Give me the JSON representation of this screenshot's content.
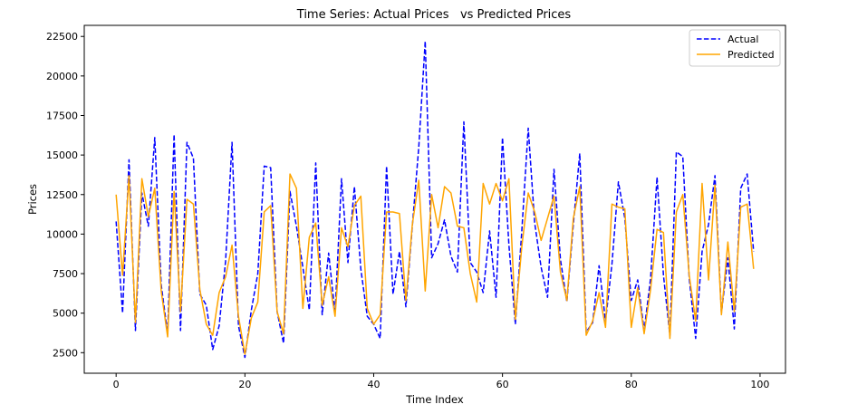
{
  "chart_data": {
    "type": "line",
    "title": "Time Series: Actual Prices   vs Predicted Prices",
    "xlabel": "Time Index",
    "ylabel": "Prices",
    "xlim": [
      -4.95,
      103.95
    ],
    "ylim": [
      1200,
      23200
    ],
    "xticks": [
      0,
      20,
      40,
      60,
      80,
      100
    ],
    "yticks": [
      2500,
      5000,
      7500,
      10000,
      12500,
      15000,
      17500,
      20000,
      22500
    ],
    "legend_position": "top-right",
    "grid": false,
    "series": [
      {
        "name": "Actual",
        "color": "#0000ff",
        "style": "dashed",
        "values": [
          10800,
          5000,
          14700,
          3900,
          12600,
          10500,
          16100,
          6800,
          3700,
          16300,
          3900,
          15800,
          14800,
          6200,
          5500,
          2700,
          4200,
          8300,
          15800,
          4200,
          2200,
          5200,
          7500,
          14300,
          14200,
          5100,
          3100,
          12700,
          10500,
          7900,
          5200,
          14500,
          4900,
          8800,
          5000,
          13500,
          8200,
          13000,
          7800,
          4800,
          4300,
          3400,
          14300,
          6200,
          8900,
          5400,
          10500,
          15500,
          22200,
          8500,
          9400,
          10900,
          8600,
          7600,
          17100,
          8200,
          7600,
          6300,
          10200,
          6000,
          16100,
          9300,
          4300,
          10200,
          16700,
          10700,
          7900,
          6000,
          14100,
          8400,
          5700,
          10600,
          15100,
          3800,
          4400,
          8000,
          4500,
          8100,
          13300,
          11000,
          5800,
          7100,
          3900,
          7200,
          13600,
          7400,
          3600,
          15200,
          14900,
          7200,
          3400,
          8900,
          10600,
          13700,
          5000,
          8500,
          4000,
          12900,
          13800,
          8900
        ]
      },
      {
        "name": "Predicted",
        "color": "#ffa500",
        "style": "solid",
        "values": [
          12500,
          7400,
          13700,
          4400,
          13500,
          11100,
          12900,
          6400,
          3500,
          12700,
          5100,
          12200,
          11900,
          6500,
          4300,
          3600,
          6300,
          7300,
          9300,
          4800,
          2400,
          4700,
          5700,
          11400,
          11800,
          5100,
          3700,
          13800,
          12900,
          5300,
          9800,
          10700,
          5500,
          7300,
          4800,
          10400,
          9200,
          11800,
          12400,
          5300,
          4300,
          4900,
          11400,
          11400,
          11300,
          5800,
          10600,
          13400,
          6400,
          12500,
          10400,
          13000,
          12600,
          10500,
          10400,
          7500,
          5700,
          13200,
          11900,
          13200,
          12100,
          13500,
          4600,
          9200,
          12600,
          11400,
          9600,
          11000,
          12400,
          7600,
          5800,
          11000,
          13000,
          3600,
          4500,
          6300,
          4100,
          11900,
          11700,
          11600,
          4100,
          6600,
          3700,
          6500,
          10300,
          10100,
          3400,
          11400,
          12500,
          7400,
          4500,
          13200,
          7100,
          13100,
          4900,
          9500,
          5100,
          11700,
          11900,
          7800
        ]
      }
    ]
  }
}
